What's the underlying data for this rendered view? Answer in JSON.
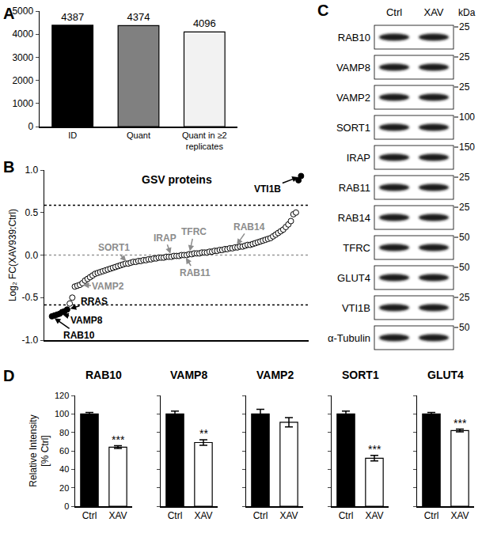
{
  "chart_data": [
    {
      "panel": "A",
      "type": "bar",
      "categories": [
        "ID",
        "Quant",
        "Quant in ≥2\nreplicates"
      ],
      "values": [
        4387,
        4374,
        4096
      ],
      "colors": [
        "#000000",
        "#808080",
        "#f2f2f2"
      ],
      "ylim": [
        0,
        5000
      ],
      "yticks": [
        0,
        1000,
        2000,
        3000,
        4000,
        5000
      ],
      "data_labels": true,
      "grid": false
    },
    {
      "panel": "B",
      "type": "scatter",
      "title": "GSV proteins",
      "ylabel": "Log₂ FC(XAV939:Ctrl)",
      "values": [
        -0.72,
        -0.71,
        -0.7,
        -0.69,
        -0.67,
        -0.66,
        -0.64,
        -0.57,
        -0.5,
        -0.37,
        -0.36,
        -0.35,
        -0.33,
        -0.3,
        -0.28,
        -0.26,
        -0.24,
        -0.22,
        -0.21,
        -0.2,
        -0.19,
        -0.18,
        -0.17,
        -0.16,
        -0.15,
        -0.14,
        -0.13,
        -0.12,
        -0.11,
        -0.1,
        -0.1,
        -0.09,
        -0.08,
        -0.08,
        -0.07,
        -0.07,
        -0.06,
        -0.06,
        -0.05,
        -0.05,
        -0.04,
        -0.04,
        -0.03,
        -0.03,
        -0.03,
        -0.02,
        -0.02,
        -0.02,
        -0.01,
        -0.01,
        -0.01,
        0.0,
        0.0,
        0.0,
        0.01,
        0.01,
        0.02,
        0.02,
        0.02,
        0.03,
        0.03,
        0.03,
        0.04,
        0.04,
        0.05,
        0.05,
        0.06,
        0.06,
        0.07,
        0.07,
        0.08,
        0.08,
        0.09,
        0.09,
        0.1,
        0.1,
        0.11,
        0.12,
        0.12,
        0.13,
        0.14,
        0.15,
        0.16,
        0.17,
        0.18,
        0.19,
        0.2,
        0.22,
        0.24,
        0.26,
        0.28,
        0.3,
        0.33,
        0.36,
        0.4,
        0.48,
        0.5,
        0.88,
        0.93
      ],
      "colors": [
        "#000000",
        "#000000",
        "#000000",
        "#000000",
        "#000000",
        "#000000",
        "#000000",
        "#ffffff",
        "#ffffff",
        "#ffffff",
        "#ffffff",
        "#ffffff",
        "#ffffff",
        "#ffffff",
        "#ffffff",
        "#ffffff",
        "#ffffff",
        "#ffffff",
        "#ffffff",
        "#ffffff",
        "#ffffff",
        "#ffffff",
        "#ffffff",
        "#ffffff",
        "#ffffff",
        "#ffffff",
        "#ffffff",
        "#ffffff",
        "#ffffff",
        "#ffffff",
        "#ffffff",
        "#ffffff",
        "#ffffff",
        "#ffffff",
        "#ffffff",
        "#ffffff",
        "#ffffff",
        "#ffffff",
        "#ffffff",
        "#ffffff",
        "#ffffff",
        "#ffffff",
        "#ffffff",
        "#ffffff",
        "#ffffff",
        "#ffffff",
        "#ffffff",
        "#ffffff",
        "#ffffff",
        "#ffffff",
        "#ffffff",
        "#ffffff",
        "#ffffff",
        "#ffffff",
        "#ffffff",
        "#ffffff",
        "#ffffff",
        "#ffffff",
        "#ffffff",
        "#ffffff",
        "#ffffff",
        "#ffffff",
        "#ffffff",
        "#ffffff",
        "#ffffff",
        "#ffffff",
        "#ffffff",
        "#ffffff",
        "#ffffff",
        "#ffffff",
        "#ffffff",
        "#ffffff",
        "#ffffff",
        "#ffffff",
        "#ffffff",
        "#ffffff",
        "#ffffff",
        "#ffffff",
        "#ffffff",
        "#ffffff",
        "#ffffff",
        "#ffffff",
        "#ffffff",
        "#ffffff",
        "#ffffff",
        "#ffffff",
        "#ffffff",
        "#ffffff",
        "#ffffff",
        "#ffffff",
        "#ffffff",
        "#ffffff",
        "#ffffff",
        "#ffffff",
        "#ffffff",
        "#ffffff",
        "#ffffff",
        "#000000",
        "#000000"
      ],
      "marker": "circle",
      "ylim": [
        -1,
        1
      ],
      "yticks": [
        {
          "value": -1,
          "label": "-1.0"
        },
        {
          "value": -0.5,
          "label": "-0.5"
        },
        {
          "value": 0,
          "label": "0.0"
        },
        {
          "value": 0.5,
          "label": "0.5"
        },
        {
          "value": 1,
          "label": "1.0"
        }
      ],
      "tick_labels": "y",
      "grid": false,
      "hlines": [
        {
          "y": 0.585,
          "color": "#000000"
        },
        {
          "y": 0,
          "color": "#999999"
        },
        {
          "y": -0.585,
          "color": "#000000"
        }
      ],
      "annotations": [
        {
          "index": 98,
          "text": "VTI1B",
          "color": "#000000"
        },
        {
          "index": 30,
          "text": "SORT1",
          "color": "#8c8c8c"
        },
        {
          "index": 47,
          "text": "IRAP",
          "color": "#8c8c8c"
        },
        {
          "index": 54,
          "text": "TFRC",
          "color": "#8c8c8c"
        },
        {
          "index": 72,
          "text": "RAB14",
          "color": "#8c8c8c"
        },
        {
          "index": 52,
          "text": "RAB11",
          "color": "#8c8c8c"
        },
        {
          "index": 11,
          "text": "VAMP2",
          "color": "#8c8c8c"
        },
        {
          "index": 6,
          "text": "RRAS",
          "color": "#000000"
        },
        {
          "index": 3,
          "text": "VAMP8",
          "color": "#000000"
        },
        {
          "index": 0,
          "text": "RAB10",
          "color": "#000000"
        }
      ]
    },
    {
      "panel": "D",
      "type": "bar",
      "title": "RAB10",
      "ylabel": "Relative Intensity\n[% Ctrl]",
      "categories": [
        "Ctrl",
        "XAV"
      ],
      "values": [
        100,
        64
      ],
      "errors": [
        1.5,
        1.5
      ],
      "colors": [
        "#000000",
        "#ffffff"
      ],
      "ylim": [
        0,
        120
      ],
      "yticks": [
        0,
        20,
        40,
        60,
        80,
        100,
        120
      ],
      "grid": false,
      "annotations": [
        {
          "category": "XAV",
          "text": "***"
        }
      ]
    },
    {
      "type": "bar",
      "title": "VAMP8",
      "categories": [
        "Ctrl",
        "XAV"
      ],
      "values": [
        100,
        69
      ],
      "errors": [
        3,
        3
      ],
      "colors": [
        "#000000",
        "#ffffff"
      ],
      "ylim": [
        0,
        120
      ],
      "yticks": [
        0,
        20,
        40,
        60,
        80,
        100,
        120
      ],
      "grid": false,
      "tick_labels": "x",
      "annotations": [
        {
          "category": "XAV",
          "text": "**"
        }
      ]
    },
    {
      "type": "bar",
      "title": "VAMP2",
      "categories": [
        "Ctrl",
        "XAV"
      ],
      "values": [
        100,
        91
      ],
      "errors": [
        5,
        5
      ],
      "colors": [
        "#000000",
        "#ffffff"
      ],
      "ylim": [
        0,
        120
      ],
      "yticks": [
        0,
        20,
        40,
        60,
        80,
        100,
        120
      ],
      "grid": false,
      "tick_labels": "x"
    },
    {
      "type": "bar",
      "title": "SORT1",
      "categories": [
        "Ctrl",
        "XAV"
      ],
      "values": [
        100,
        52
      ],
      "errors": [
        3,
        3
      ],
      "colors": [
        "#000000",
        "#ffffff"
      ],
      "ylim": [
        0,
        120
      ],
      "yticks": [
        0,
        20,
        40,
        60,
        80,
        100,
        120
      ],
      "grid": false,
      "tick_labels": "x",
      "annotations": [
        {
          "category": "XAV",
          "text": "***"
        }
      ]
    },
    {
      "type": "bar",
      "title": "GLUT4",
      "categories": [
        "Ctrl",
        "XAV"
      ],
      "values": [
        100,
        82
      ],
      "errors": [
        1.5,
        1.5
      ],
      "colors": [
        "#000000",
        "#ffffff"
      ],
      "ylim": [
        0,
        120
      ],
      "yticks": [
        0,
        20,
        40,
        60,
        80,
        100,
        120
      ],
      "grid": false,
      "tick_labels": "x",
      "annotations": [
        {
          "category": "XAV",
          "text": "***"
        }
      ]
    }
  ],
  "blot": {
    "panel": "C",
    "lanes": [
      "Ctrl",
      "XAV"
    ],
    "unit": "kDa",
    "rows": [
      {
        "label": "RAB10",
        "marker": 25
      },
      {
        "label": "VAMP8",
        "marker": 25
      },
      {
        "label": "VAMP2",
        "marker": 25
      },
      {
        "label": "SORT1",
        "marker": 100
      },
      {
        "label": "IRAP",
        "marker": 150
      },
      {
        "label": "RAB11",
        "marker": 25
      },
      {
        "label": "RAB14",
        "marker": 25
      },
      {
        "label": "TFRC",
        "marker": 50
      },
      {
        "label": "GLUT4",
        "marker": 50
      },
      {
        "label": "VTI1B",
        "marker": 25
      },
      {
        "label": "α-Tubulin",
        "marker": 50
      }
    ]
  }
}
